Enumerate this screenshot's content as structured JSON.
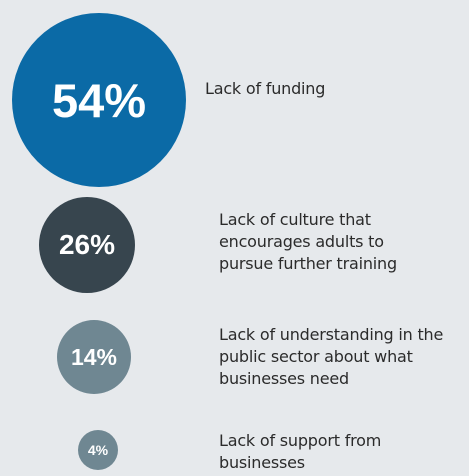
{
  "chart_data": {
    "type": "bubble",
    "unit": "%",
    "items": [
      {
        "value": 54,
        "value_label": "54%",
        "label": "Lack of funding",
        "color": "#0b6aa6"
      },
      {
        "value": 26,
        "value_label": "26%",
        "label": "Lack of culture that encourages adults to pursue further training",
        "color": "#37454e"
      },
      {
        "value": 14,
        "value_label": "14%",
        "label": "Lack of understanding in the public sector about what businesses need",
        "color": "#6f8792"
      },
      {
        "value": 4,
        "value_label": "4%",
        "label": "Lack of support from businesses",
        "color": "#6f8792"
      }
    ]
  }
}
